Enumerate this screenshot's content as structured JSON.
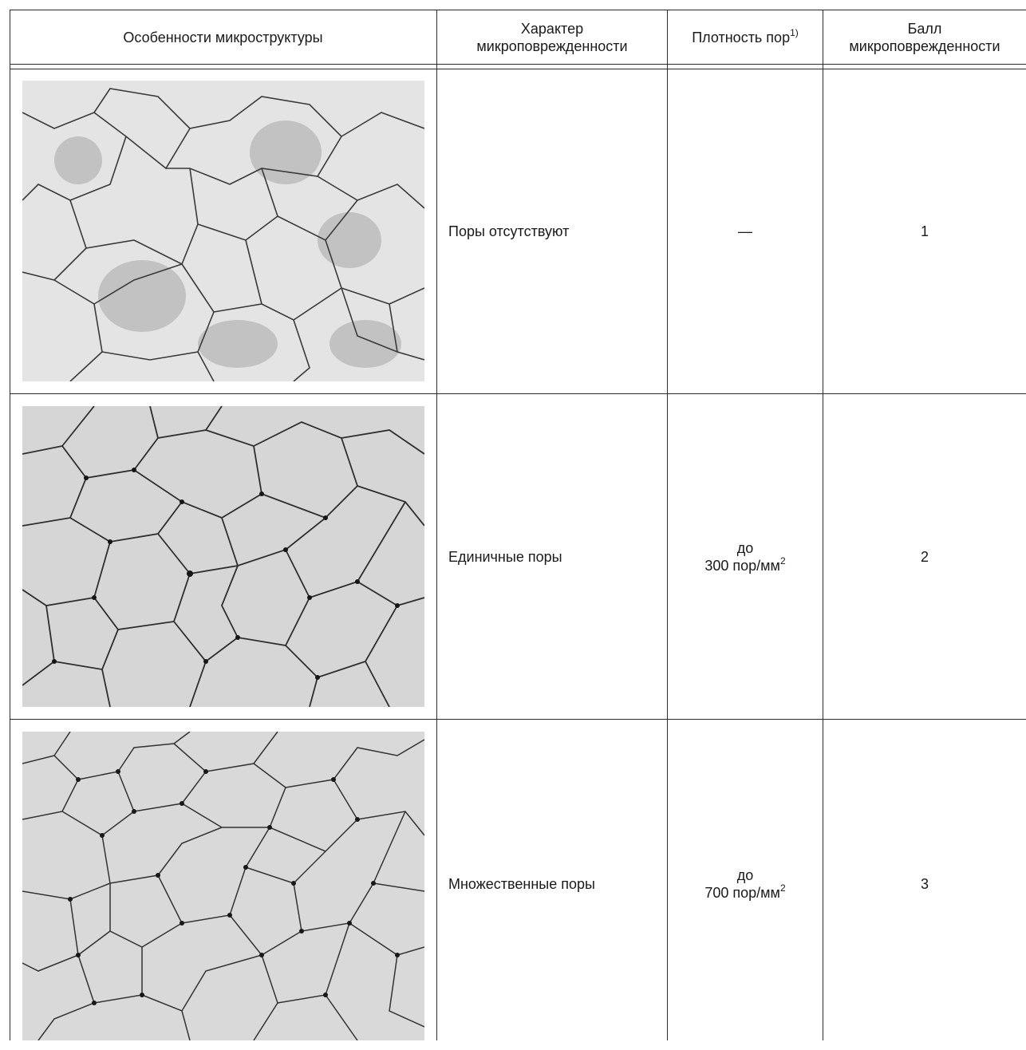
{
  "header": {
    "col1": "Особенности микроструктуры",
    "col2_line1": "Характер",
    "col2_line2": "микроповрежденности",
    "col3": "Плотность пор",
    "col3_sup": "1)",
    "col4_line1": "Балл",
    "col4_line2": "микроповрежденности"
  },
  "rows": [
    {
      "character": "Поры отсутствуют",
      "density_line1": "—",
      "density_line2": "",
      "density_sup": "",
      "score": "1"
    },
    {
      "character": "Единичные поры",
      "density_line1": "до",
      "density_line2": "300 пор/мм",
      "density_sup": "2",
      "score": "2"
    },
    {
      "character": "Множественные поры",
      "density_line1": "до",
      "density_line2": "700 пор/мм",
      "density_sup": "2",
      "score": "3"
    }
  ]
}
